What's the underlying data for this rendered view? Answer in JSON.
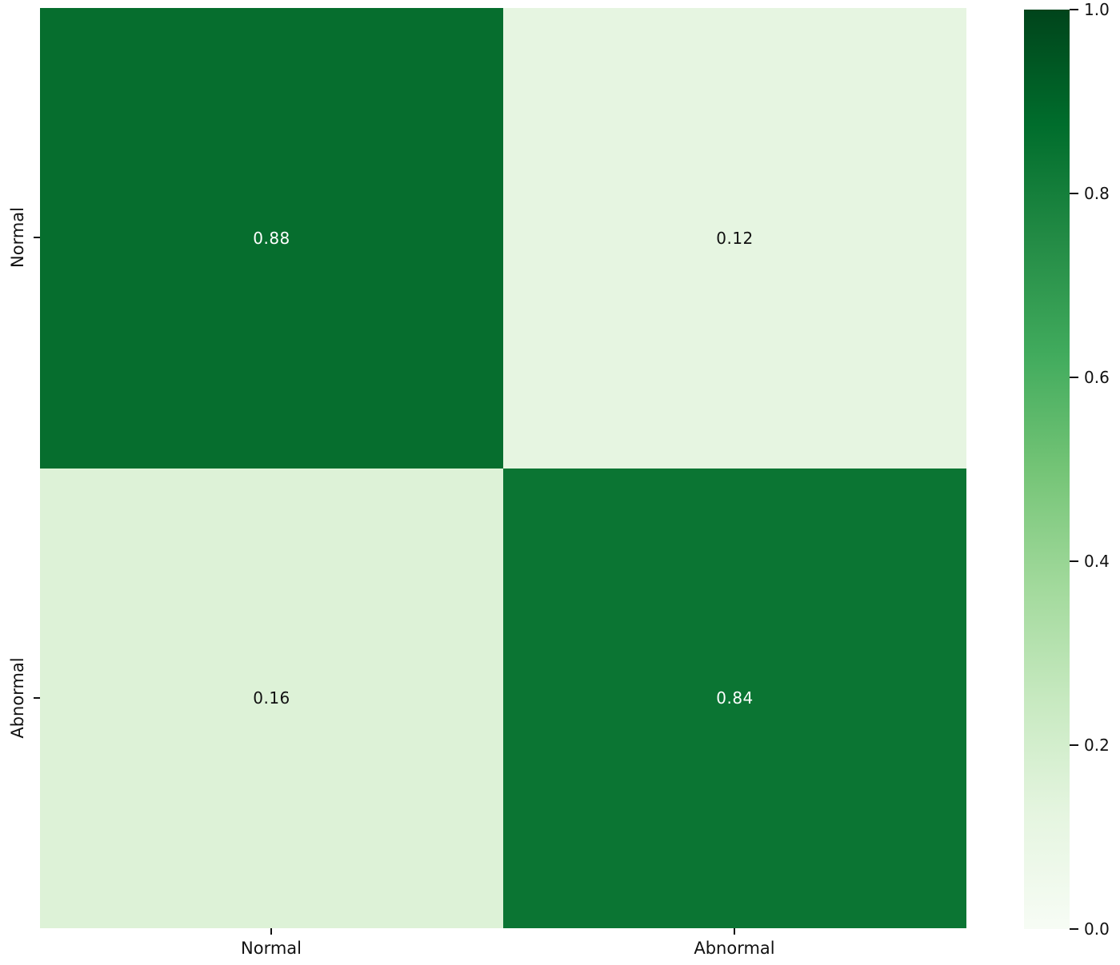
{
  "chart_data": {
    "type": "heatmap",
    "title": "",
    "xlabel": "",
    "ylabel": "",
    "x_categories": [
      "Normal",
      "Abnormal"
    ],
    "y_categories": [
      "Normal",
      "Abnormal"
    ],
    "matrix": [
      [
        0.88,
        0.12
      ],
      [
        0.16,
        0.84
      ]
    ],
    "cells": [
      {
        "row": "Normal",
        "col": "Normal",
        "value": 0.88,
        "label": "0.88",
        "bg": "#066e2e",
        "fg": "#ffffff"
      },
      {
        "row": "Normal",
        "col": "Abnormal",
        "value": 0.12,
        "label": "0.12",
        "bg": "#e6f5e1",
        "fg": "#111111"
      },
      {
        "row": "Abnormal",
        "col": "Normal",
        "value": 0.16,
        "label": "0.16",
        "bg": "#ddf2d7",
        "fg": "#111111"
      },
      {
        "row": "Abnormal",
        "col": "Abnormal",
        "value": 0.84,
        "label": "0.84",
        "bg": "#0b7533",
        "fg": "#ffffff"
      }
    ],
    "colormap": "Greens",
    "value_range": [
      0.0,
      1.0
    ],
    "colorbar_ticks": [
      "1.0",
      "0.8",
      "0.6",
      "0.4",
      "0.2",
      "0.0"
    ],
    "colorbar_position": "right",
    "grid": false,
    "annotations_shown": true
  },
  "colors": {
    "background": "#ffffff",
    "tick_text": "#111111",
    "colormap_stops_low_to_high": [
      "#f7fcf5",
      "#e5f5e0",
      "#c7e9c0",
      "#a1d99b",
      "#74c476",
      "#41ab5d",
      "#238b45",
      "#006d2c",
      "#00441b"
    ]
  }
}
